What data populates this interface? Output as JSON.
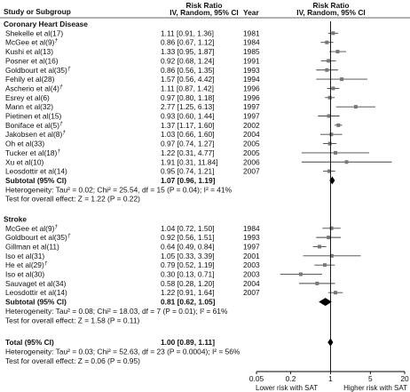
{
  "header": {
    "col_study": "Study or Subgroup",
    "col_ratio_title": "Risk Ratio",
    "col_ratio_sub": "IV, Random, 95% CI",
    "col_year": "Year",
    "plot_title": "Risk Ratio",
    "plot_sub": "IV, Random, 95% CI"
  },
  "chart_data": {
    "type": "forest",
    "measure": "Risk Ratio (IV, Random, 95% CI)",
    "x_scale": "log",
    "xlim": [
      0.05,
      20
    ],
    "x_ticks": [
      "0.05",
      "0.2",
      "1",
      "5",
      "20"
    ],
    "reference_line": 1,
    "footer_left": "Lower risk with SAT",
    "footer_right": "Higher risk with SAT",
    "groups": [
      {
        "name": "Coronary Heart Disease",
        "studies": [
          {
            "label": "Shekelle et al(17)",
            "sup": "",
            "rr": 1.11,
            "lo": 0.91,
            "hi": 1.36,
            "ci": "1.11 [0.91, 1.36]",
            "year": "1981"
          },
          {
            "label": "McGee et al(9)",
            "sup": "†",
            "rr": 0.86,
            "lo": 0.67,
            "hi": 1.12,
            "ci": "0.86 [0.67, 1.12]",
            "year": "1984"
          },
          {
            "label": "Kushi et al(13)",
            "sup": "",
            "rr": 1.33,
            "lo": 0.95,
            "hi": 1.87,
            "ci": "1.33 [0.95, 1.87]",
            "year": "1985"
          },
          {
            "label": "Posner et al(16)",
            "sup": "",
            "rr": 0.92,
            "lo": 0.68,
            "hi": 1.24,
            "ci": "0.92 [0.68, 1.24]",
            "year": "1991"
          },
          {
            "label": "Goldbourt et al(35)",
            "sup": "†",
            "rr": 0.86,
            "lo": 0.56,
            "hi": 1.35,
            "ci": "0.86 [0.56, 1.35]",
            "year": "1993"
          },
          {
            "label": "Fehily et al(28)",
            "sup": "",
            "rr": 1.57,
            "lo": 0.56,
            "hi": 4.42,
            "ci": "1.57 [0.56, 4.42]",
            "year": "1994"
          },
          {
            "label": "Ascherio et al(4)",
            "sup": "†",
            "rr": 1.11,
            "lo": 0.87,
            "hi": 1.42,
            "ci": "1.11 [0.87, 1.42]",
            "year": "1996"
          },
          {
            "label": "Esrey et al(6)",
            "sup": "",
            "rr": 0.97,
            "lo": 0.8,
            "hi": 1.18,
            "ci": "0.97 [0.80, 1.18]",
            "year": "1996"
          },
          {
            "label": "Mann et al(32)",
            "sup": "",
            "rr": 2.77,
            "lo": 1.25,
            "hi": 6.13,
            "ci": "2.77 [1.25, 6.13]",
            "year": "1997"
          },
          {
            "label": "Pietinen et al(15)",
            "sup": "",
            "rr": 0.93,
            "lo": 0.6,
            "hi": 1.44,
            "ci": "0.93 [0.60, 1.44]",
            "year": "1997"
          },
          {
            "label": "Boniface et al(5)",
            "sup": "†",
            "rr": 1.37,
            "lo": 1.17,
            "hi": 1.6,
            "ci": "1.37 [1.17, 1.60]",
            "year": "2002"
          },
          {
            "label": "Jakobsen et al(8)",
            "sup": "†",
            "rr": 1.03,
            "lo": 0.66,
            "hi": 1.6,
            "ci": "1.03 [0.66, 1.60]",
            "year": "2004"
          },
          {
            "label": "Oh et al(33)",
            "sup": "",
            "rr": 0.97,
            "lo": 0.74,
            "hi": 1.27,
            "ci": "0.97 [0.74, 1.27]",
            "year": "2005"
          },
          {
            "label": "Tucker et al(18)",
            "sup": "†",
            "rr": 1.22,
            "lo": 0.31,
            "hi": 4.77,
            "ci": "1.22 [0.31, 4.77]",
            "year": "2005"
          },
          {
            "label": "Xu et al(10)",
            "sup": "",
            "rr": 1.91,
            "lo": 0.31,
            "hi": 11.84,
            "ci": "1.91 [0.31, 11.84]",
            "year": "2006"
          },
          {
            "label": "Leosdottir et al(14)",
            "sup": "",
            "rr": 0.95,
            "lo": 0.74,
            "hi": 1.21,
            "ci": "0.95 [0.74, 1.21]",
            "year": "2007"
          }
        ],
        "subtotal": {
          "label": "Subtotal (95% CI)",
          "rr": 1.07,
          "lo": 0.96,
          "hi": 1.19,
          "ci": "1.07 [0.96, 1.19]"
        },
        "heterogeneity": "Heterogeneity: Tau² = 0.02; Chi² = 25.54, df = 15 (P = 0.04); I² = 41%",
        "overall_test": "Test for overall effect: Z = 1.22 (P = 0.22)"
      },
      {
        "name": "Stroke",
        "studies": [
          {
            "label": "McGee et al(9)",
            "sup": "†",
            "rr": 1.04,
            "lo": 0.72,
            "hi": 1.5,
            "ci": "1.04 [0.72, 1.50]",
            "year": "1984"
          },
          {
            "label": "Goldbourt et al(35)",
            "sup": "†",
            "rr": 0.92,
            "lo": 0.56,
            "hi": 1.51,
            "ci": "0.92 [0.56, 1.51]",
            "year": "1993"
          },
          {
            "label": "Gillman et al(11)",
            "sup": "",
            "rr": 0.64,
            "lo": 0.49,
            "hi": 0.84,
            "ci": "0.64 [0.49, 0.84]",
            "year": "1997"
          },
          {
            "label": "Iso et al(31)",
            "sup": "",
            "rr": 1.05,
            "lo": 0.33,
            "hi": 3.39,
            "ci": "1.05 [0.33, 3.39]",
            "year": "2001"
          },
          {
            "label": "He et al(29)",
            "sup": "†",
            "rr": 0.79,
            "lo": 0.52,
            "hi": 1.19,
            "ci": "0.79 [0.52, 1.19]",
            "year": "2003"
          },
          {
            "label": "Iso et al(30)",
            "sup": "",
            "rr": 0.3,
            "lo": 0.13,
            "hi": 0.71,
            "ci": "0.30 [0.13, 0.71]",
            "year": "2003"
          },
          {
            "label": "Sauvaget et al(34)",
            "sup": "",
            "rr": 0.58,
            "lo": 0.28,
            "hi": 1.2,
            "ci": "0.58 [0.28, 1.20]",
            "year": "2004"
          },
          {
            "label": "Leosdottir et al(14)",
            "sup": "",
            "rr": 1.22,
            "lo": 0.91,
            "hi": 1.64,
            "ci": "1.22 [0.91, 1.64]",
            "year": "2007"
          }
        ],
        "subtotal": {
          "label": "Subtotal (95% CI)",
          "rr": 0.81,
          "lo": 0.62,
          "hi": 1.05,
          "ci": "0.81 [0.62, 1.05]"
        },
        "heterogeneity": "Heterogeneity: Tau² = 0.08; Chi² = 18.03, df = 7 (P = 0.01); I² = 61%",
        "overall_test": "Test for overall effect: Z = 1.58 (P = 0.11)"
      }
    ],
    "total": {
      "label": "Total (95% CI)",
      "rr": 1.0,
      "lo": 0.89,
      "hi": 1.11,
      "ci": "1.00 [0.89, 1.11]"
    },
    "total_heterogeneity": "Heterogeneity: Tau² = 0.03; Chi² = 52.63, df = 23 (P = 0.0004); I² = 56%",
    "total_overall_test": "Test for overall effect: Z = 0.06 (P = 0.95)"
  }
}
